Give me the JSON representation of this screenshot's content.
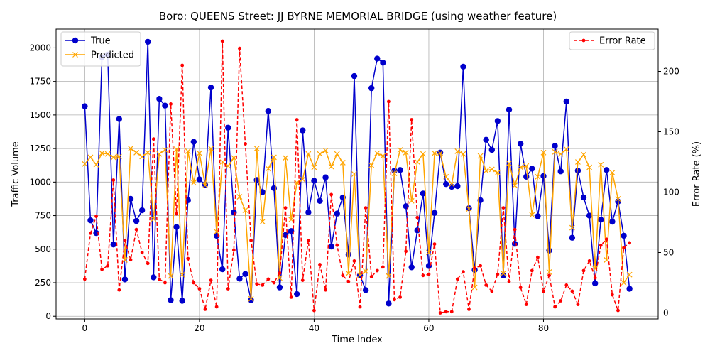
{
  "chart_data": {
    "type": "line",
    "title": "Boro: QUEENS Street: JJ BYRNE MEMORIAL BRIDGE (using weather feature)",
    "xlabel": "Time Index",
    "ylabel": "Traffic Volume",
    "y2label": "Error Rate (%)",
    "xlim": [
      -5,
      100
    ],
    "ylim": [
      -20,
      2140
    ],
    "y2lim": [
      -5,
      235
    ],
    "xticks": [
      0,
      20,
      40,
      60,
      80
    ],
    "yticks": [
      0,
      250,
      500,
      750,
      1000,
      1250,
      1500,
      1750,
      2000
    ],
    "y2ticks": [
      0,
      50,
      100,
      150,
      200
    ],
    "grid": true,
    "legend_left_placement": "upper-left",
    "legend_right_placement": "upper-right",
    "series": [
      {
        "name": "True",
        "axis": "left",
        "color": "#0000cc",
        "marker": "circle",
        "values": [
          1565,
          715,
          620,
          1930,
          1950,
          535,
          1470,
          275,
          875,
          710,
          790,
          2045,
          290,
          1620,
          1570,
          120,
          665,
          115,
          865,
          1300,
          1020,
          980,
          1705,
          600,
          350,
          1405,
          775,
          280,
          315,
          120,
          1015,
          925,
          1530,
          955,
          215,
          605,
          635,
          165,
          1385,
          775,
          1010,
          860,
          1035,
          520,
          765,
          885,
          460,
          1790,
          305,
          195,
          1700,
          1920,
          1890,
          95,
          1085,
          1090,
          820,
          365,
          640,
          915,
          375,
          770,
          1220,
          985,
          965,
          970,
          1860,
          805,
          345,
          865,
          1315,
          1240,
          1455,
          305,
          1540,
          540,
          1285,
          1040,
          1100,
          745,
          1045,
          490,
          1270,
          1080,
          1600,
          585,
          1085,
          885,
          750,
          245,
          720,
          1090,
          705,
          855,
          600,
          205
        ]
      },
      {
        "name": "Predicted",
        "axis": "left",
        "color": "#ffa500",
        "marker": "x",
        "values": [
          1135,
          1185,
          1130,
          1215,
          1210,
          1185,
          1190,
          420,
          1250,
          1220,
          1190,
          1220,
          725,
          1210,
          1240,
          300,
          1245,
          310,
          1230,
          995,
          1215,
          975,
          1250,
          630,
          1150,
          1120,
          1180,
          890,
          790,
          130,
          1250,
          705,
          1100,
          1185,
          285,
          1180,
          720,
          995,
          1020,
          1210,
          1110,
          1210,
          1235,
          1115,
          1210,
          1145,
          320,
          1060,
          305,
          335,
          1125,
          1215,
          1195,
          300,
          1065,
          1240,
          1220,
          860,
          1150,
          1210,
          475,
          1215,
          1215,
          1040,
          985,
          1230,
          1210,
          800,
          215,
          1195,
          1085,
          1095,
          1070,
          320,
          1140,
          975,
          1110,
          1120,
          755,
          1040,
          1220,
          330,
          1225,
          1210,
          1245,
          660,
          1150,
          1205,
          1110,
          355,
          1130,
          420,
          1070,
          875,
          250,
          310
        ]
      },
      {
        "name": "Error Rate",
        "axis": "right",
        "color": "#ff0000",
        "marker": "dot",
        "values": [
          28,
          66,
          80,
          36,
          39,
          110,
          19,
          60,
          44,
          69,
          50,
          41,
          144,
          28,
          25,
          173,
          82,
          205,
          45,
          25,
          20,
          3,
          27,
          5,
          225,
          20,
          52,
          219,
          140,
          60,
          24,
          23,
          28,
          25,
          33,
          87,
          13,
          160,
          27,
          60,
          2,
          40,
          19,
          98,
          56,
          31,
          26,
          43,
          5,
          87,
          30,
          35,
          38,
          175,
          11,
          13,
          51,
          160,
          79,
          31,
          32,
          57,
          0,
          1,
          1,
          28,
          34,
          3,
          37,
          39,
          23,
          18,
          32,
          87,
          26,
          69,
          21,
          7,
          35,
          46,
          18,
          31,
          5,
          10,
          23,
          18,
          7,
          35,
          43,
          29,
          56,
          61,
          15,
          2,
          54,
          58
        ]
      }
    ]
  }
}
